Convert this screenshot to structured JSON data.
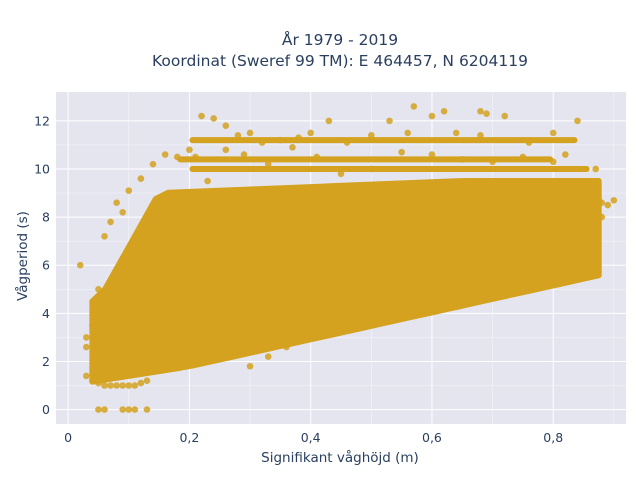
{
  "colors": {
    "marker": "#D4A21F",
    "plot_bg": "#E5E5F0",
    "grid": "#FFFFFF",
    "text": "#2a3f5f"
  },
  "chart_data": {
    "type": "scatter",
    "title_line1": "År 1979 - 2019",
    "title_line2": "Koordinat (Sweref 99 TM): E 464457, N 6204119",
    "xlabel": "Signifikant våghöjd (m)",
    "ylabel": "Vågperiod (s)",
    "xlim": [
      -0.02,
      0.92
    ],
    "ylim": [
      -0.6,
      13.2
    ],
    "x_ticks": [
      0,
      0.2,
      0.4,
      0.6,
      0.8
    ],
    "x_tick_labels": [
      "0",
      "0,2",
      "0,4",
      "0,6",
      "0,8"
    ],
    "y_ticks": [
      0,
      2,
      4,
      6,
      8,
      10,
      12
    ],
    "y_tick_labels": [
      "0",
      "2",
      "4",
      "6",
      "8",
      "10",
      "12"
    ],
    "grid": true,
    "legend": "none",
    "series": [
      {
        "x": [
          0.02,
          0.03,
          0.03,
          0.04,
          0.05,
          0.06,
          0.07,
          0.08,
          0.09,
          0.1,
          0.11,
          0.12,
          0.13,
          0.05,
          0.06,
          0.09,
          0.1,
          0.11,
          0.13,
          0.03,
          0.04,
          0.05,
          0.06,
          0.07,
          0.08,
          0.09,
          0.1,
          0.12,
          0.14,
          0.16,
          0.18,
          0.2,
          0.22,
          0.24,
          0.26,
          0.28,
          0.3,
          0.32,
          0.35,
          0.38,
          0.4,
          0.43,
          0.46,
          0.5,
          0.53,
          0.56,
          0.6,
          0.64,
          0.68,
          0.72,
          0.76,
          0.8,
          0.84,
          0.87,
          0.15,
          0.18,
          0.21,
          0.24,
          0.27,
          0.3,
          0.33,
          0.36,
          0.4,
          0.44,
          0.48,
          0.52,
          0.56,
          0.6,
          0.64,
          0.68,
          0.72,
          0.76,
          0.8,
          0.85,
          0.88,
          0.19,
          0.21,
          0.23,
          0.26,
          0.29,
          0.33,
          0.37,
          0.41,
          0.45,
          0.5,
          0.55,
          0.6,
          0.65,
          0.68,
          0.7,
          0.75,
          0.8,
          0.82,
          0.84,
          0.87,
          0.89,
          0.3,
          0.33,
          0.36,
          0.39,
          0.42,
          0.45,
          0.48,
          0.52,
          0.56,
          0.69,
          0.57,
          0.62,
          0.28,
          0.32,
          0.36,
          0.44,
          0.5,
          0.55,
          0.62,
          0.66,
          0.7,
          0.74,
          0.78,
          0.82,
          0.86,
          0.88,
          0.9
        ],
        "y": [
          6.0,
          3.0,
          1.4,
          1.2,
          1.1,
          1.0,
          1.0,
          1.0,
          1.0,
          1.0,
          1.0,
          1.1,
          1.2,
          0.0,
          0.0,
          0.0,
          0.0,
          0.0,
          0.0,
          2.6,
          3.5,
          5.0,
          7.2,
          7.8,
          8.6,
          8.2,
          9.1,
          9.6,
          10.2,
          10.6,
          10.5,
          10.8,
          12.2,
          12.1,
          11.8,
          11.4,
          11.5,
          11.1,
          11.2,
          11.3,
          11.5,
          12.0,
          11.1,
          11.4,
          12.0,
          11.5,
          12.2,
          11.5,
          12.4,
          12.2,
          11.1,
          11.5,
          12.0,
          10.0,
          2.3,
          2.7,
          3.0,
          3.3,
          3.5,
          3.8,
          4.0,
          4.2,
          4.4,
          4.7,
          5.0,
          5.2,
          5.4,
          5.7,
          6.0,
          6.2,
          6.5,
          6.9,
          7.2,
          7.6,
          8.0,
          9.0,
          10.5,
          9.5,
          10.8,
          10.6,
          10.2,
          10.9,
          10.5,
          9.8,
          10.0,
          10.7,
          10.6,
          10.4,
          11.4,
          10.3,
          10.5,
          10.3,
          10.6,
          9.2,
          8.8,
          8.5,
          1.8,
          2.2,
          2.6,
          3.0,
          3.3,
          3.7,
          4.1,
          4.5,
          4.9,
          12.3,
          12.6,
          12.4,
          8.5,
          7.8,
          7.0,
          6.5,
          6.8,
          7.2,
          7.4,
          7.7,
          7.9,
          8.0,
          8.2,
          8.4,
          8.5,
          8.6,
          8.7
        ]
      }
    ]
  }
}
